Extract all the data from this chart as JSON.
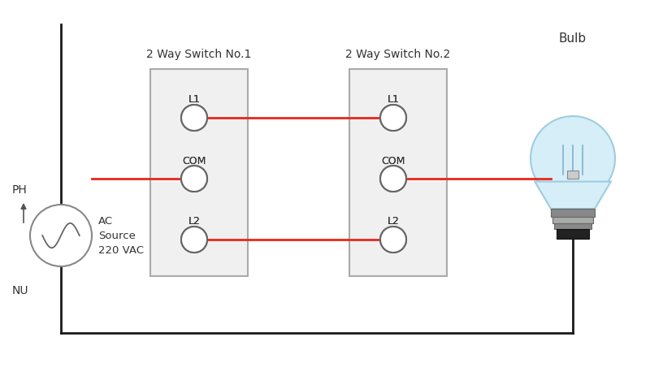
{
  "bg_color": "#ffffff",
  "switch1_label": "2 Way Switch No.1",
  "switch2_label": "2 Way Switch No.2",
  "bulb_label": "Bulb",
  "ph_label": "PH",
  "nu_label": "NU",
  "ac_label": "AC\nSource\n220 VAC",
  "wire_color_red": "#e8271a",
  "wire_color_black": "#1a1a1a",
  "terminal_fill": "#ffffff",
  "terminal_edge": "#666666",
  "box_fill": "#f0f0f0",
  "box_edge": "#aaaaaa",
  "text_color": "#333333"
}
